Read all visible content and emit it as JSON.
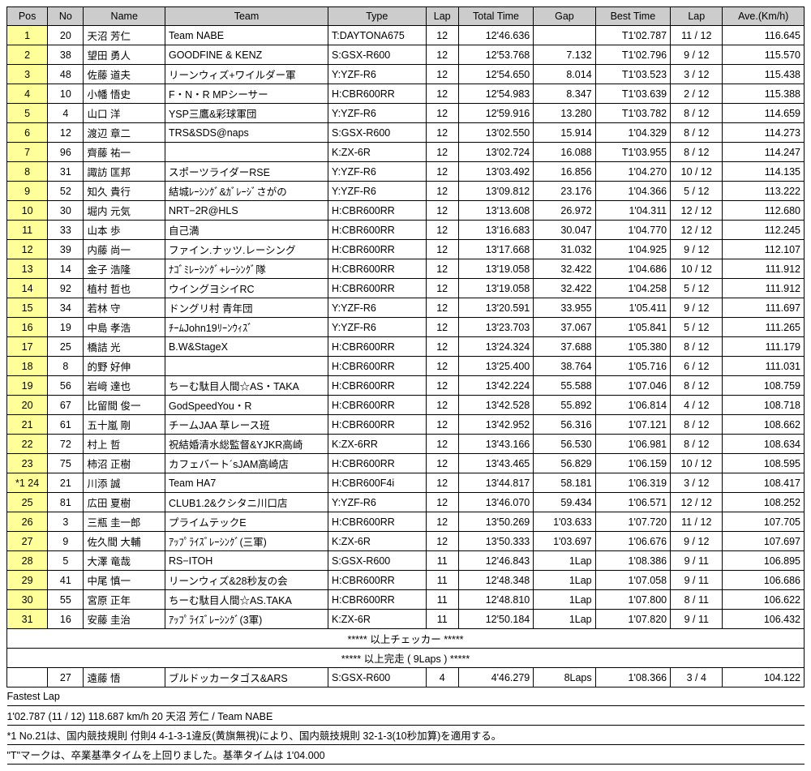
{
  "columns": [
    "Pos",
    "No",
    "Name",
    "Team",
    "Type",
    "Lap",
    "Total Time",
    "Gap",
    "Best Time",
    "Lap",
    "Ave.(Km/h)"
  ],
  "rows": [
    {
      "pos": "1",
      "no": "20",
      "name": "天沼 芳仁",
      "team": "Team NABE",
      "type": "T:DAYTONA675",
      "lap": "12",
      "total": "12'46.636",
      "gap": "",
      "best": "T1'02.787",
      "blap": "11 / 12",
      "ave": "116.645"
    },
    {
      "pos": "2",
      "no": "38",
      "name": "望田 勇人",
      "team": "GOODFINE & KENZ",
      "type": "S:GSX-R600",
      "lap": "12",
      "total": "12'53.768",
      "gap": "7.132",
      "best": "T1'02.796",
      "blap": "9 / 12",
      "ave": "115.570"
    },
    {
      "pos": "3",
      "no": "48",
      "name": "佐藤 道夫",
      "team": "リーンウィズ+ワイルダー軍",
      "type": "Y:YZF-R6",
      "lap": "12",
      "total": "12'54.650",
      "gap": "8.014",
      "best": "T1'03.523",
      "blap": "3 / 12",
      "ave": "115.438"
    },
    {
      "pos": "4",
      "no": "10",
      "name": "小幡 悟史",
      "team": "F・N・R MPシーサー",
      "type": "H:CBR600RR",
      "lap": "12",
      "total": "12'54.983",
      "gap": "8.347",
      "best": "T1'03.639",
      "blap": "2 / 12",
      "ave": "115.388"
    },
    {
      "pos": "5",
      "no": "4",
      "name": "山口 洋",
      "team": "YSP三鷹&彩球軍団",
      "type": "Y:YZF-R6",
      "lap": "12",
      "total": "12'59.916",
      "gap": "13.280",
      "best": "T1'03.782",
      "blap": "8 / 12",
      "ave": "114.659"
    },
    {
      "pos": "6",
      "no": "12",
      "name": "渡辺 章二",
      "team": "TRS&SDS@naps",
      "type": "S:GSX-R600",
      "lap": "12",
      "total": "13'02.550",
      "gap": "15.914",
      "best": "1'04.329",
      "blap": "8 / 12",
      "ave": "114.273"
    },
    {
      "pos": "7",
      "no": "96",
      "name": "齊藤 祐一",
      "team": "",
      "type": "K:ZX-6R",
      "lap": "12",
      "total": "13'02.724",
      "gap": "16.088",
      "best": "T1'03.955",
      "blap": "8 / 12",
      "ave": "114.247"
    },
    {
      "pos": "8",
      "no": "31",
      "name": "諏訪 匡邦",
      "team": "スポーツライダーRSE",
      "type": "Y:YZF-R6",
      "lap": "12",
      "total": "13'03.492",
      "gap": "16.856",
      "best": "1'04.270",
      "blap": "10 / 12",
      "ave": "114.135"
    },
    {
      "pos": "9",
      "no": "52",
      "name": "知久 貴行",
      "team": "結城ﾚｰｼﾝｸﾞ&ｶﾞﾚｰｼﾞさがの",
      "type": "Y:YZF-R6",
      "lap": "12",
      "total": "13'09.812",
      "gap": "23.176",
      "best": "1'04.366",
      "blap": "5 / 12",
      "ave": "113.222"
    },
    {
      "pos": "10",
      "no": "30",
      "name": "堀内 元気",
      "team": "NRT−2R@HLS",
      "type": "H:CBR600RR",
      "lap": "12",
      "total": "13'13.608",
      "gap": "26.972",
      "best": "1'04.311",
      "blap": "12 / 12",
      "ave": "112.680"
    },
    {
      "pos": "11",
      "no": "33",
      "name": "山本 歩",
      "team": "自己満",
      "type": "H:CBR600RR",
      "lap": "12",
      "total": "13'16.683",
      "gap": "30.047",
      "best": "1'04.770",
      "blap": "12 / 12",
      "ave": "112.245"
    },
    {
      "pos": "12",
      "no": "39",
      "name": "内藤 尚一",
      "team": "ファイン.ナッツ.レーシング",
      "type": "H:CBR600RR",
      "lap": "12",
      "total": "13'17.668",
      "gap": "31.032",
      "best": "1'04.925",
      "blap": "9 / 12",
      "ave": "112.107"
    },
    {
      "pos": "13",
      "no": "14",
      "name": "金子 浩隆",
      "team": "ﾅｺﾞﾐﾚｰｼﾝｸﾞ+ﾚｰｼﾝｸﾞ隊",
      "type": "H:CBR600RR",
      "lap": "12",
      "total": "13'19.058",
      "gap": "32.422",
      "best": "1'04.686",
      "blap": "10 / 12",
      "ave": "111.912"
    },
    {
      "pos": "14",
      "no": "92",
      "name": "植村 哲也",
      "team": "ウイングヨシイRC",
      "type": "H:CBR600RR",
      "lap": "12",
      "total": "13'19.058",
      "gap": "32.422",
      "best": "1'04.258",
      "blap": "5 / 12",
      "ave": "111.912"
    },
    {
      "pos": "15",
      "no": "34",
      "name": "若林 守",
      "team": "ドングリ村 青年団",
      "type": "Y:YZF-R6",
      "lap": "12",
      "total": "13'20.591",
      "gap": "33.955",
      "best": "1'05.411",
      "blap": "9 / 12",
      "ave": "111.697"
    },
    {
      "pos": "16",
      "no": "19",
      "name": "中島 孝浩",
      "team": "ﾁｰﾑJohn19ﾘｰﾝｳｨｽﾞ",
      "type": "Y:YZF-R6",
      "lap": "12",
      "total": "13'23.703",
      "gap": "37.067",
      "best": "1'05.841",
      "blap": "5 / 12",
      "ave": "111.265"
    },
    {
      "pos": "17",
      "no": "25",
      "name": "橋詰 光",
      "team": "B.W&StageX",
      "type": "H:CBR600RR",
      "lap": "12",
      "total": "13'24.324",
      "gap": "37.688",
      "best": "1'05.380",
      "blap": "8 / 12",
      "ave": "111.179"
    },
    {
      "pos": "18",
      "no": "8",
      "name": "的野 好伸",
      "team": "",
      "type": "H:CBR600RR",
      "lap": "12",
      "total": "13'25.400",
      "gap": "38.764",
      "best": "1'05.716",
      "blap": "6 / 12",
      "ave": "111.031"
    },
    {
      "pos": "19",
      "no": "56",
      "name": "岩﨑 達也",
      "team": "ちーむ駄目人間☆AS・TAKA",
      "type": "H:CBR600RR",
      "lap": "12",
      "total": "13'42.224",
      "gap": "55.588",
      "best": "1'07.046",
      "blap": "8 / 12",
      "ave": "108.759"
    },
    {
      "pos": "20",
      "no": "67",
      "name": "比留間 俊一",
      "team": "GodSpeedYou・R",
      "type": "H:CBR600RR",
      "lap": "12",
      "total": "13'42.528",
      "gap": "55.892",
      "best": "1'06.814",
      "blap": "4 / 12",
      "ave": "108.718"
    },
    {
      "pos": "21",
      "no": "61",
      "name": "五十嵐 剛",
      "team": "チームJAA 草レース班",
      "type": "H:CBR600RR",
      "lap": "12",
      "total": "13'42.952",
      "gap": "56.316",
      "best": "1'07.121",
      "blap": "8 / 12",
      "ave": "108.662"
    },
    {
      "pos": "22",
      "no": "72",
      "name": "村上 哲",
      "team": "祝結婚清水総監督&YJKR高崎",
      "type": "K:ZX-6RR",
      "lap": "12",
      "total": "13'43.166",
      "gap": "56.530",
      "best": "1'06.981",
      "blap": "8 / 12",
      "ave": "108.634"
    },
    {
      "pos": "23",
      "no": "75",
      "name": "柿沼 正樹",
      "team": "カフェバート´sJAM高崎店",
      "type": "H:CBR600RR",
      "lap": "12",
      "total": "13'43.465",
      "gap": "56.829",
      "best": "1'06.159",
      "blap": "10 / 12",
      "ave": "108.595"
    },
    {
      "pos": "*1 24",
      "no": "21",
      "name": "川添 誠",
      "team": "Team HA7",
      "type": "H:CBR600F4i",
      "lap": "12",
      "total": "13'44.817",
      "gap": "58.181",
      "best": "1'06.319",
      "blap": "3 / 12",
      "ave": "108.417"
    },
    {
      "pos": "25",
      "no": "81",
      "name": "広田 夏樹",
      "team": "CLUB1.2&クシタニ川口店",
      "type": "Y:YZF-R6",
      "lap": "12",
      "total": "13'46.070",
      "gap": "59.434",
      "best": "1'06.571",
      "blap": "12 / 12",
      "ave": "108.252"
    },
    {
      "pos": "26",
      "no": "3",
      "name": "三瓶 圭一郎",
      "team": "プライムテックE",
      "type": "H:CBR600RR",
      "lap": "12",
      "total": "13'50.269",
      "gap": "1'03.633",
      "best": "1'07.720",
      "blap": "11 / 12",
      "ave": "107.705"
    },
    {
      "pos": "27",
      "no": "9",
      "name": "佐久間 大輔",
      "team": "ｱｯﾌﾟﾗｲｽﾞﾚｰｼﾝｸﾞ(三軍)",
      "type": "K:ZX-6R",
      "lap": "12",
      "total": "13'50.333",
      "gap": "1'03.697",
      "best": "1'06.676",
      "blap": "9 / 12",
      "ave": "107.697"
    },
    {
      "pos": "28",
      "no": "5",
      "name": "大澤 竜哉",
      "team": "RS−ITOH",
      "type": "S:GSX-R600",
      "lap": "11",
      "total": "12'46.843",
      "gap": "1Lap",
      "best": "1'08.386",
      "blap": "9 / 11",
      "ave": "106.895"
    },
    {
      "pos": "29",
      "no": "41",
      "name": "中尾 慎一",
      "team": "リーンウィズ&28秒友の会",
      "type": "H:CBR600RR",
      "lap": "11",
      "total": "12'48.348",
      "gap": "1Lap",
      "best": "1'07.058",
      "blap": "9 / 11",
      "ave": "106.686"
    },
    {
      "pos": "30",
      "no": "55",
      "name": "宮原 正年",
      "team": "ちーむ駄目人間☆AS.TAKA",
      "type": "H:CBR600RR",
      "lap": "11",
      "total": "12'48.810",
      "gap": "1Lap",
      "best": "1'07.800",
      "blap": "8 / 11",
      "ave": "106.622"
    },
    {
      "pos": "31",
      "no": "16",
      "name": "安藤 圭治",
      "team": "ｱｯﾌﾟﾗｲｽﾞﾚｰｼﾝｸﾞ(3軍)",
      "type": "K:ZX-6R",
      "lap": "11",
      "total": "12'50.184",
      "gap": "1Lap",
      "best": "1'07.820",
      "blap": "9 / 11",
      "ave": "106.432"
    }
  ],
  "separators": {
    "checker": "***** 以上チェッカー *****",
    "complete": "***** 以上完走 ( 9Laps ) *****"
  },
  "extra_row": {
    "pos": "",
    "no": "27",
    "name": "遠藤 悟",
    "team": "ブルドッカータゴス&ARS",
    "type": "S:GSX-R600",
    "lap": "4",
    "total": "4'46.279",
    "gap": "8Laps",
    "best": "1'08.366",
    "blap": "3 / 4",
    "ave": "104.122"
  },
  "footer": [
    "Fastest Lap",
    "1'02.787 (11 / 12) 118.687 km/h 20 天沼 芳仁 / Team NABE",
    "*1 No.21は、国内競技規則 付則4 4-1-3-1違反(黄旗無視)により、国内競技規則 32-1-3(10秒加算)を適用する。",
    "\"T\"マークは、卒業基準タイムを上回りました。基準タイムは 1'04.000"
  ]
}
